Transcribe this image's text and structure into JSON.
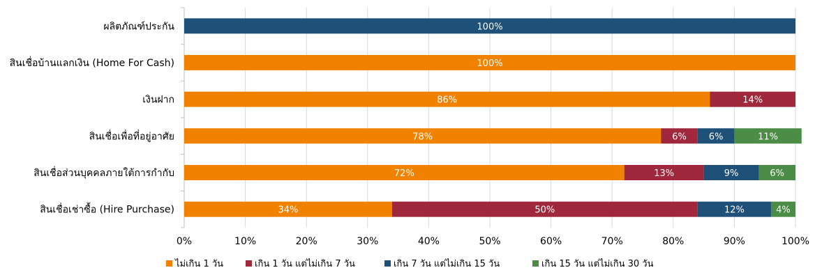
{
  "chart_data": {
    "type": "bar",
    "orientation": "horizontal",
    "stacked": true,
    "categories": [
      "ผลิตภัณฑ์ประกัน",
      "สินเชื่อบ้านแลกเงิน (Home For Cash)",
      "เงินฝาก",
      "สินเชื่อเพื่อที่อยู่อาศัย",
      "สินเชื่อส่วนบุคคลภายใต้การกำกับ",
      "สินเชื่อเช่าซื้อ (Hire Purchase)"
    ],
    "series": [
      {
        "name": "ไม่เกิน 1 วัน",
        "color": "#F08200",
        "values": [
          0,
          100,
          86,
          78,
          72,
          34
        ],
        "labels": [
          "",
          "100%",
          "86%",
          "78%",
          "72%",
          "34%"
        ]
      },
      {
        "name": "เกิน 1 วัน แต่ไม่เกิน 7 วัน",
        "color": "#A0283C",
        "values": [
          0,
          0,
          14,
          6,
          13,
          50
        ],
        "labels": [
          "",
          "",
          "14%",
          "6%",
          "13%",
          "50%"
        ]
      },
      {
        "name": "เกิน 7 วัน แต่ไม่เกิน 15 วัน",
        "color": "#1E5078",
        "values": [
          100,
          0,
          0,
          6,
          9,
          12
        ],
        "labels": [
          "100%",
          "",
          "",
          "6%",
          "9%",
          "12%"
        ]
      },
      {
        "name": "เกิน 15 วัน แต่ไม่เกิน 30 วัน",
        "color": "#4B8C46",
        "values": [
          0,
          0,
          0,
          11,
          6,
          4
        ],
        "labels": [
          "",
          "",
          "",
          "11%",
          "6%",
          "4%"
        ]
      }
    ],
    "xlim": [
      0,
      100
    ],
    "xticks": [
      "0%",
      "10%",
      "20%",
      "30%",
      "40%",
      "50%",
      "60%",
      "70%",
      "80%",
      "90%",
      "100%"
    ],
    "grid": true,
    "legend_position": "bottom"
  }
}
